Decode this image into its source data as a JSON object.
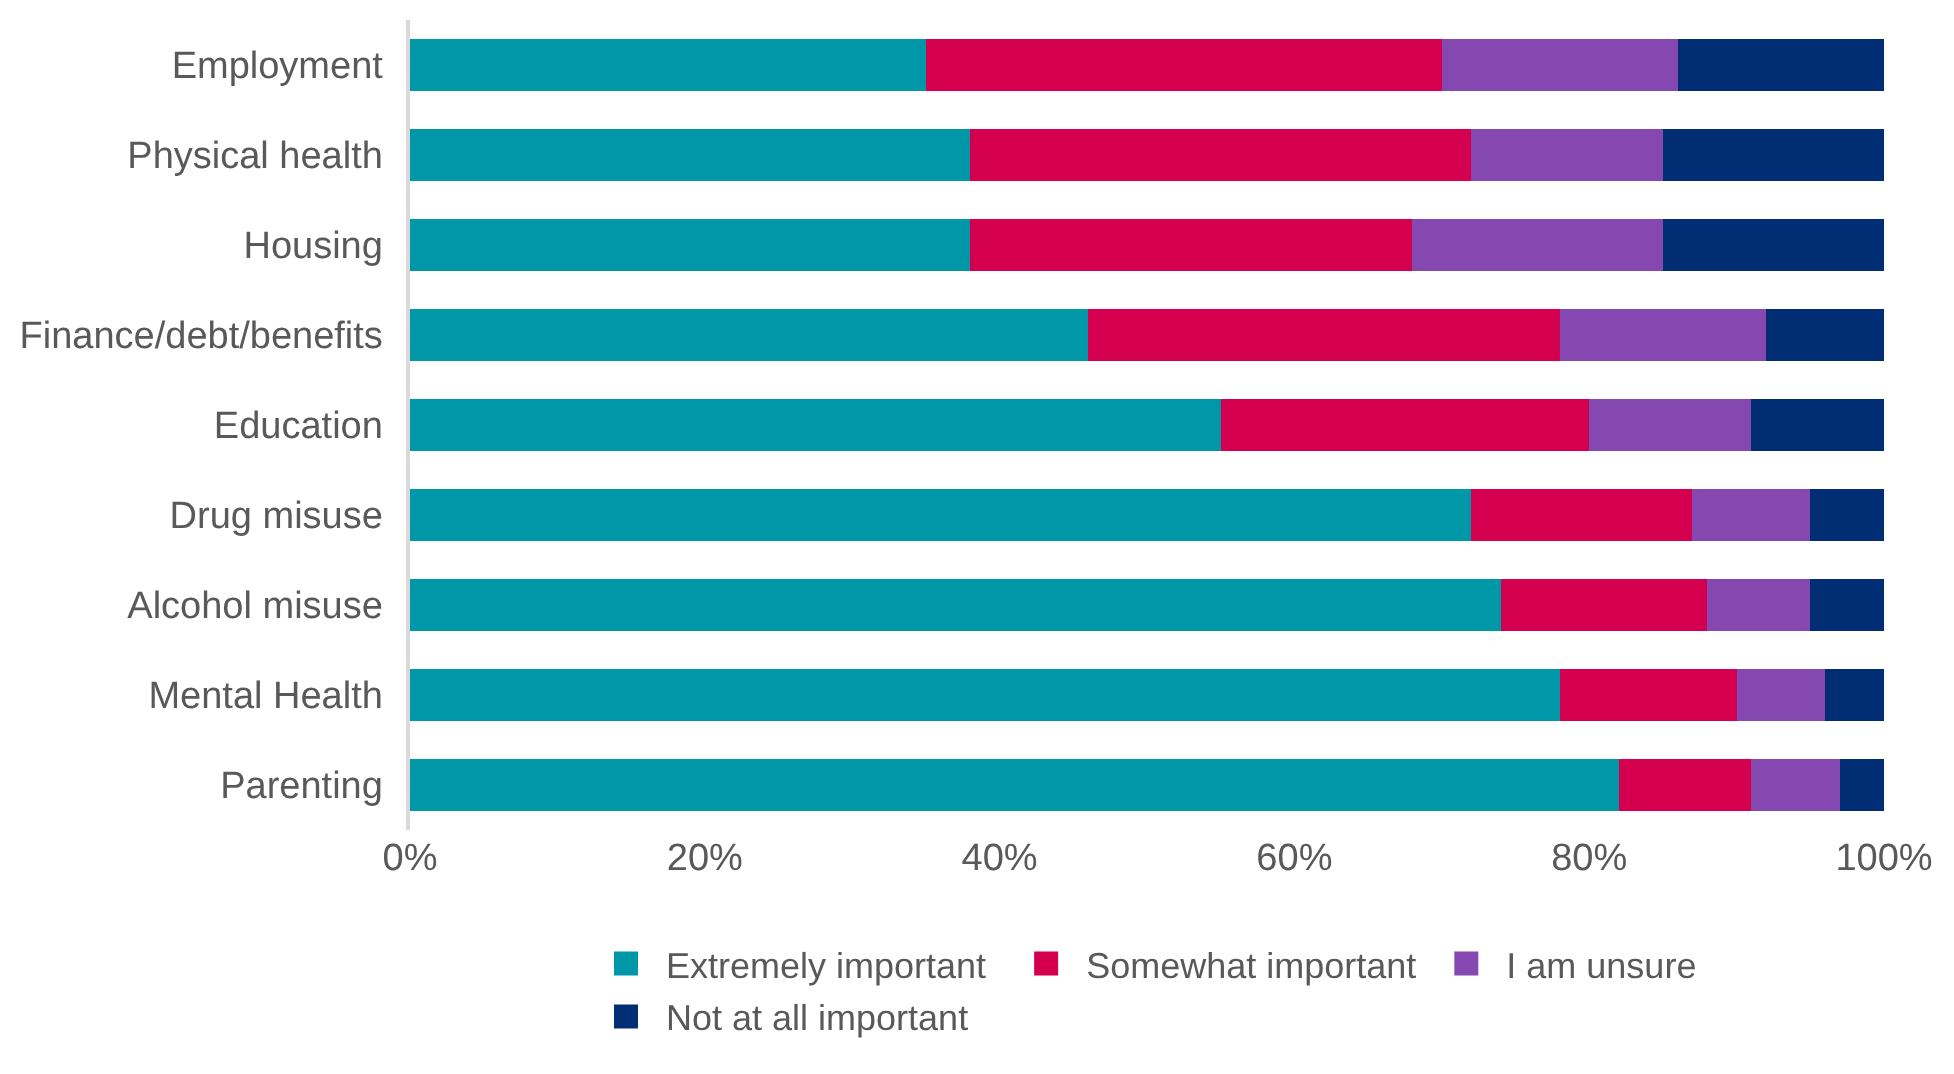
{
  "chart_data": {
    "type": "bar",
    "orientation": "horizontal",
    "stacked": true,
    "categories": [
      "Employment",
      "Physical health",
      "Housing",
      "Finance/debt/benefits",
      "Education",
      "Drug misuse",
      "Alcohol misuse",
      "Mental Health",
      "Parenting"
    ],
    "series": [
      {
        "name": "Extremely important",
        "color": "#0098a8",
        "values": [
          35,
          38,
          38,
          46,
          55,
          72,
          74,
          78,
          82
        ]
      },
      {
        "name": "Somewhat important",
        "color": "#d4004f",
        "values": [
          35,
          34,
          30,
          32,
          25,
          15,
          14,
          12,
          9
        ]
      },
      {
        "name": "I am unsure",
        "color": "#8448b0",
        "values": [
          16,
          13,
          17,
          14,
          11,
          8,
          7,
          6,
          6
        ]
      },
      {
        "name": "Not at all important",
        "color": "#002d73",
        "values": [
          14,
          15,
          15,
          8,
          9,
          5,
          5,
          4,
          3
        ]
      }
    ],
    "xlim": [
      0,
      100
    ],
    "xticks": [
      {
        "value": 0,
        "label": "0%"
      },
      {
        "value": 20,
        "label": "20%"
      },
      {
        "value": 40,
        "label": "40%"
      },
      {
        "value": 60,
        "label": "60%"
      },
      {
        "value": 80,
        "label": "80%"
      },
      {
        "value": 100,
        "label": "100%"
      }
    ],
    "grid": false,
    "legend": "bottom"
  }
}
